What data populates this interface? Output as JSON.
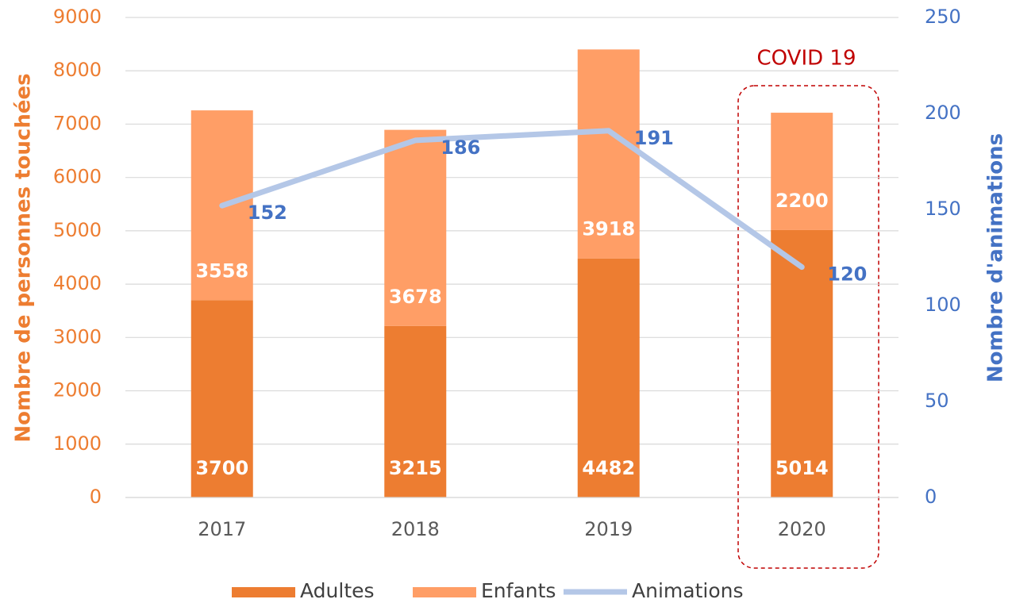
{
  "chart_data": {
    "type": "bar",
    "stacked": true,
    "categories": [
      "2017",
      "2018",
      "2019",
      "2020"
    ],
    "series": [
      {
        "name": "Adultes",
        "color": "#ed7d31",
        "values": [
          3700,
          3215,
          4482,
          5014
        ]
      },
      {
        "name": "Enfants",
        "color": "#ff9e66",
        "values": [
          3558,
          3678,
          3918,
          2200
        ]
      },
      {
        "name": "Animations",
        "type": "line",
        "axis": "y2",
        "color": "#b4c7e7",
        "values": [
          152,
          186,
          191,
          120
        ]
      }
    ],
    "ylabel": "Nombre de personnes touchées",
    "y2label": "Nombre d'animations",
    "ylim": [
      0,
      9000
    ],
    "yticks": [
      0,
      1000,
      2000,
      3000,
      4000,
      5000,
      6000,
      7000,
      8000,
      9000
    ],
    "y2lim": [
      0,
      250
    ],
    "y2ticks": [
      0,
      50,
      100,
      150,
      200,
      250
    ],
    "grid": true,
    "legend": "bottom",
    "annotation": "COVID 19"
  }
}
